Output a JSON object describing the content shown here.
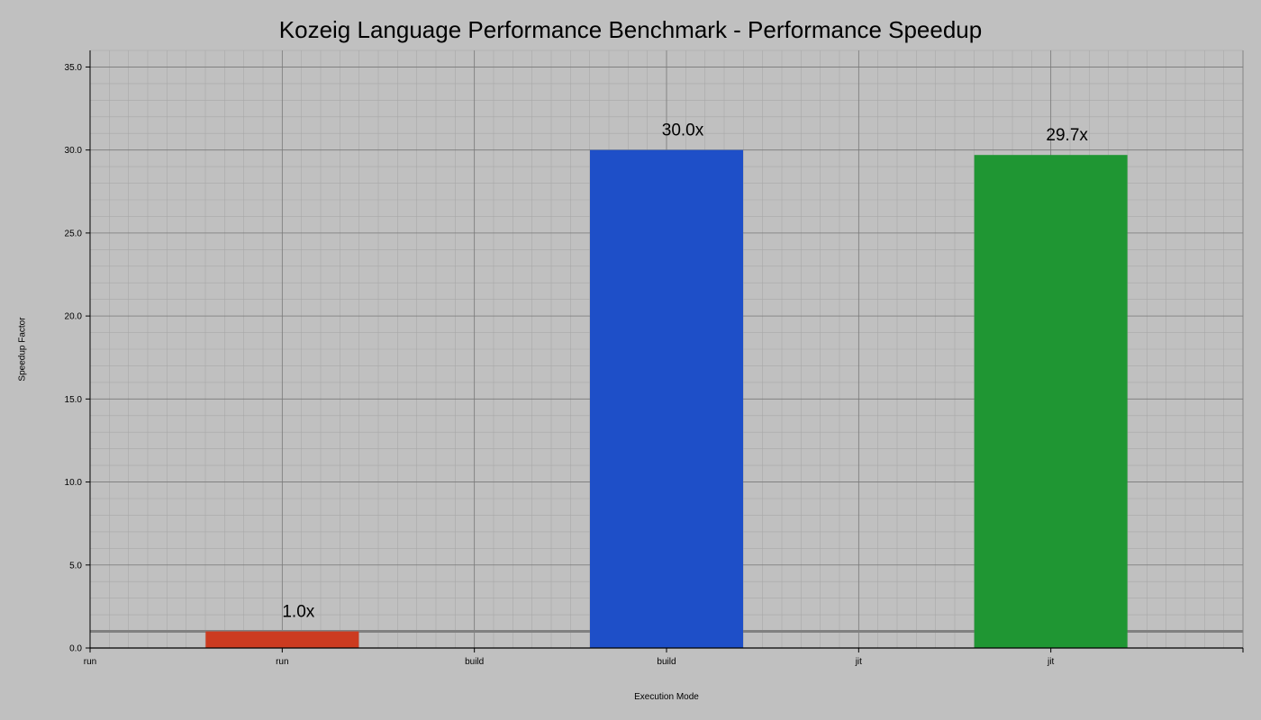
{
  "chart_data": {
    "type": "bar",
    "title": "Kozeig Language Performance Benchmark - Performance Speedup",
    "xlabel": "Execution Mode",
    "ylabel": "Speedup Factor",
    "categories": [
      "run",
      "build",
      "jit"
    ],
    "x_tick_labels": [
      "run",
      "run",
      "build",
      "build",
      "jit",
      "jit"
    ],
    "values": [
      1.0,
      30.0,
      29.7
    ],
    "data_labels": [
      "1.0x",
      "30.0x",
      "29.7x"
    ],
    "y_ticks": [
      0.0,
      5.0,
      10.0,
      15.0,
      20.0,
      25.0,
      30.0,
      35.0
    ],
    "y_tick_labels": [
      "0.0",
      "5.0",
      "10.0",
      "15.0",
      "20.0",
      "25.0",
      "30.0",
      "35.0"
    ],
    "ylim": [
      0,
      36
    ],
    "baseline": 1.0,
    "grid": true,
    "legend": false,
    "colors": {
      "background": "#c0c0c0",
      "bars": [
        "#cc3b20",
        "#1e4fc8",
        "#1f9633"
      ],
      "grid_major": "#7a7a7a",
      "grid_minor": "#a8a8a8",
      "baseline": "#808080",
      "axis": "#000000"
    }
  }
}
